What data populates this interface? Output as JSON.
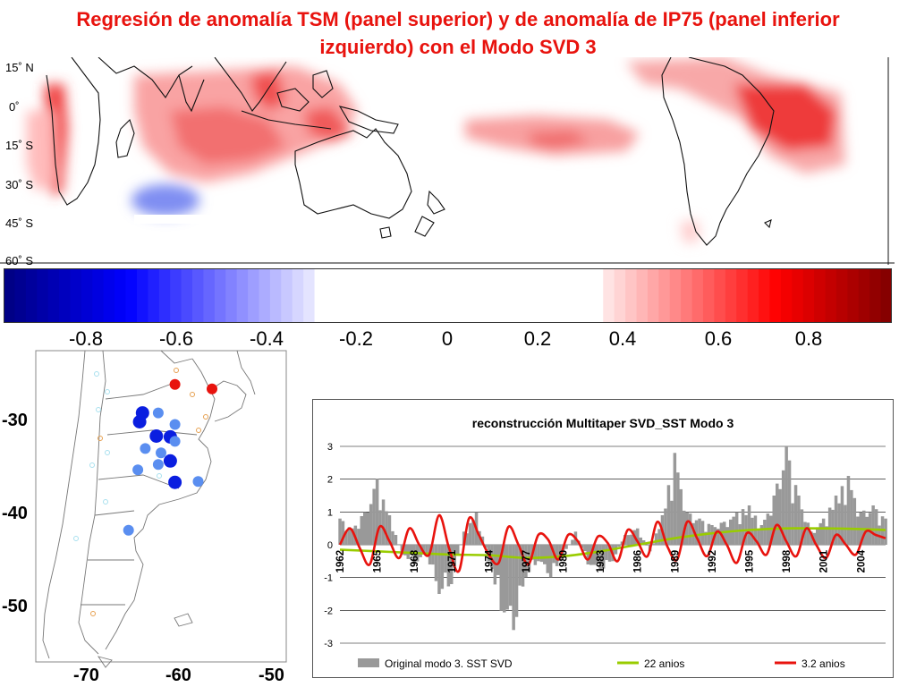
{
  "title": {
    "line1": "Regresión de anomalía TSM (panel superior) y de anomalía de IP75 (panel inferior",
    "line2": "izquierdo) con el Modo SVD 3"
  },
  "top_map": {
    "lat_labels": [
      "15˚ N",
      "0˚",
      "15˚ S",
      "30˚ S",
      "45˚ S",
      "60˚ S"
    ]
  },
  "colorbar": {
    "tick_labels": [
      "-0.8",
      "-0.6",
      "-0.4",
      "-0.2",
      "0",
      "0.2",
      "0.4",
      "0.6",
      "0.8"
    ],
    "range": [
      -1.0,
      1.0
    ],
    "neutral_band": [
      -0.3,
      0.35
    ],
    "colors": {
      "neg_end": "#000080",
      "neg_mid": "#0000ff",
      "pos_mid": "#ff0000",
      "pos_end": "#800000"
    }
  },
  "bottom_map": {
    "lat_labels": [
      "-30",
      "-40",
      "-50"
    ],
    "lon_labels": [
      "-70",
      "-60",
      "-50"
    ],
    "stations": [
      {
        "lon": -60.0,
        "lat": -26.8,
        "val": 0.45
      },
      {
        "lon": -56.0,
        "lat": -27.3,
        "val": 0.45
      },
      {
        "lon": -63.5,
        "lat": -30.0,
        "val": -0.6
      },
      {
        "lon": -61.8,
        "lat": -30.0,
        "val": -0.4
      },
      {
        "lon": -63.8,
        "lat": -31.0,
        "val": -0.6
      },
      {
        "lon": -60.0,
        "lat": -31.3,
        "val": -0.4
      },
      {
        "lon": -62.0,
        "lat": -32.6,
        "val": -0.6
      },
      {
        "lon": -60.5,
        "lat": -32.7,
        "val": -0.6
      },
      {
        "lon": -60.0,
        "lat": -33.2,
        "val": -0.4
      },
      {
        "lon": -63.2,
        "lat": -34.0,
        "val": -0.45
      },
      {
        "lon": -61.5,
        "lat": -34.5,
        "val": -0.45
      },
      {
        "lon": -60.5,
        "lat": -35.4,
        "val": -0.6
      },
      {
        "lon": -61.8,
        "lat": -35.8,
        "val": -0.4
      },
      {
        "lon": -64.0,
        "lat": -36.4,
        "val": -0.4
      },
      {
        "lon": -60.0,
        "lat": -37.8,
        "val": -0.6
      },
      {
        "lon": -57.5,
        "lat": -37.7,
        "val": -0.4
      },
      {
        "lon": -65.0,
        "lat": -43.2,
        "val": -0.45
      }
    ]
  },
  "chart_data": {
    "type": "line",
    "title": "reconstrucción Multitaper SVD_SST Modo 3",
    "x_range": [
      1962,
      2006
    ],
    "ylim": [
      -3,
      3
    ],
    "yticks": [
      "3",
      "2",
      "1",
      "0",
      "-1",
      "-2",
      "-3"
    ],
    "xticks": [
      "1962",
      "1965",
      "1968",
      "1971",
      "1974",
      "1977",
      "1980",
      "1983",
      "1986",
      "1989",
      "1992",
      "1995",
      "1998",
      "2001",
      "2004"
    ],
    "series": [
      {
        "name": "Original modo 3. SST SVD",
        "style": "bar",
        "color": "#999999",
        "x": [
          1962,
          1963,
          1964,
          1965,
          1966,
          1967,
          1968,
          1969,
          1970,
          1971,
          1972,
          1973,
          1974,
          1975,
          1976,
          1977,
          1978,
          1979,
          1980,
          1981,
          1982,
          1983,
          1984,
          1985,
          1986,
          1987,
          1988,
          1989,
          1990,
          1991,
          1992,
          1993,
          1994,
          1995,
          1996,
          1997,
          1998,
          1999,
          2000,
          2001,
          2002,
          2003,
          2004,
          2005,
          2006
        ],
        "values": [
          0.8,
          0.5,
          1.0,
          2.0,
          0.9,
          -0.3,
          -0.6,
          -0.3,
          -1.5,
          -1.2,
          0.4,
          1.0,
          -0.5,
          -2.0,
          -2.6,
          -1.0,
          -0.5,
          -1.0,
          -0.4,
          0.4,
          -0.6,
          -0.8,
          -0.5,
          0.3,
          0.5,
          -0.2,
          0.9,
          2.8,
          1.0,
          0.8,
          0.6,
          0.7,
          1.0,
          1.2,
          0.6,
          1.5,
          3.0,
          1.5,
          0.4,
          0.8,
          1.5,
          2.1,
          1.0,
          1.2,
          0.8
        ]
      },
      {
        "name": "22 anios",
        "color": "#99cc00",
        "x": [
          1962,
          1965,
          1968,
          1971,
          1974,
          1977,
          1980,
          1983,
          1986,
          1989,
          1992,
          1995,
          1998,
          2001,
          2004,
          2006
        ],
        "values": [
          -0.15,
          -0.2,
          -0.25,
          -0.3,
          -0.32,
          -0.4,
          -0.35,
          -0.2,
          0.0,
          0.2,
          0.35,
          0.45,
          0.5,
          0.5,
          0.48,
          0.45
        ]
      },
      {
        "name": "3.2 anios",
        "color": "#e8130e",
        "x": [
          1962,
          1962.8,
          1963.6,
          1964.4,
          1965.2,
          1966.0,
          1966.8,
          1967.6,
          1968.4,
          1969.2,
          1970.0,
          1970.8,
          1971.6,
          1972.4,
          1973.2,
          1974.0,
          1974.8,
          1975.6,
          1976.4,
          1977.2,
          1978.0,
          1978.8,
          1979.6,
          1980.4,
          1981.2,
          1982.0,
          1982.8,
          1983.6,
          1984.4,
          1985.2,
          1986.0,
          1986.8,
          1987.6,
          1988.4,
          1989.2,
          1990.0,
          1990.8,
          1991.6,
          1992.4,
          1993.2,
          1994.0,
          1994.8,
          1995.6,
          1996.4,
          1997.2,
          1998.0,
          1998.8,
          1999.6,
          2000.4,
          2001.2,
          2002.0,
          2002.8,
          2003.6,
          2004.4,
          2005.2,
          2006.0
        ],
        "values": [
          0.0,
          0.5,
          -0.1,
          -0.6,
          0.55,
          0.1,
          -0.4,
          0.5,
          0.0,
          -0.3,
          0.9,
          -0.1,
          -0.8,
          0.8,
          0.3,
          -0.3,
          -0.55,
          0.55,
          0.0,
          -0.6,
          0.3,
          0.15,
          -0.45,
          0.3,
          0.1,
          -0.45,
          0.25,
          0.05,
          -0.5,
          0.45,
          0.1,
          -0.35,
          0.7,
          -0.05,
          -0.45,
          0.7,
          0.2,
          -0.35,
          0.4,
          0.0,
          -0.55,
          0.35,
          0.1,
          -0.3,
          0.6,
          0.1,
          -0.35,
          0.5,
          0.0,
          -0.4,
          0.3,
          0.0,
          -0.3,
          0.4,
          0.3,
          0.2
        ]
      }
    ]
  }
}
